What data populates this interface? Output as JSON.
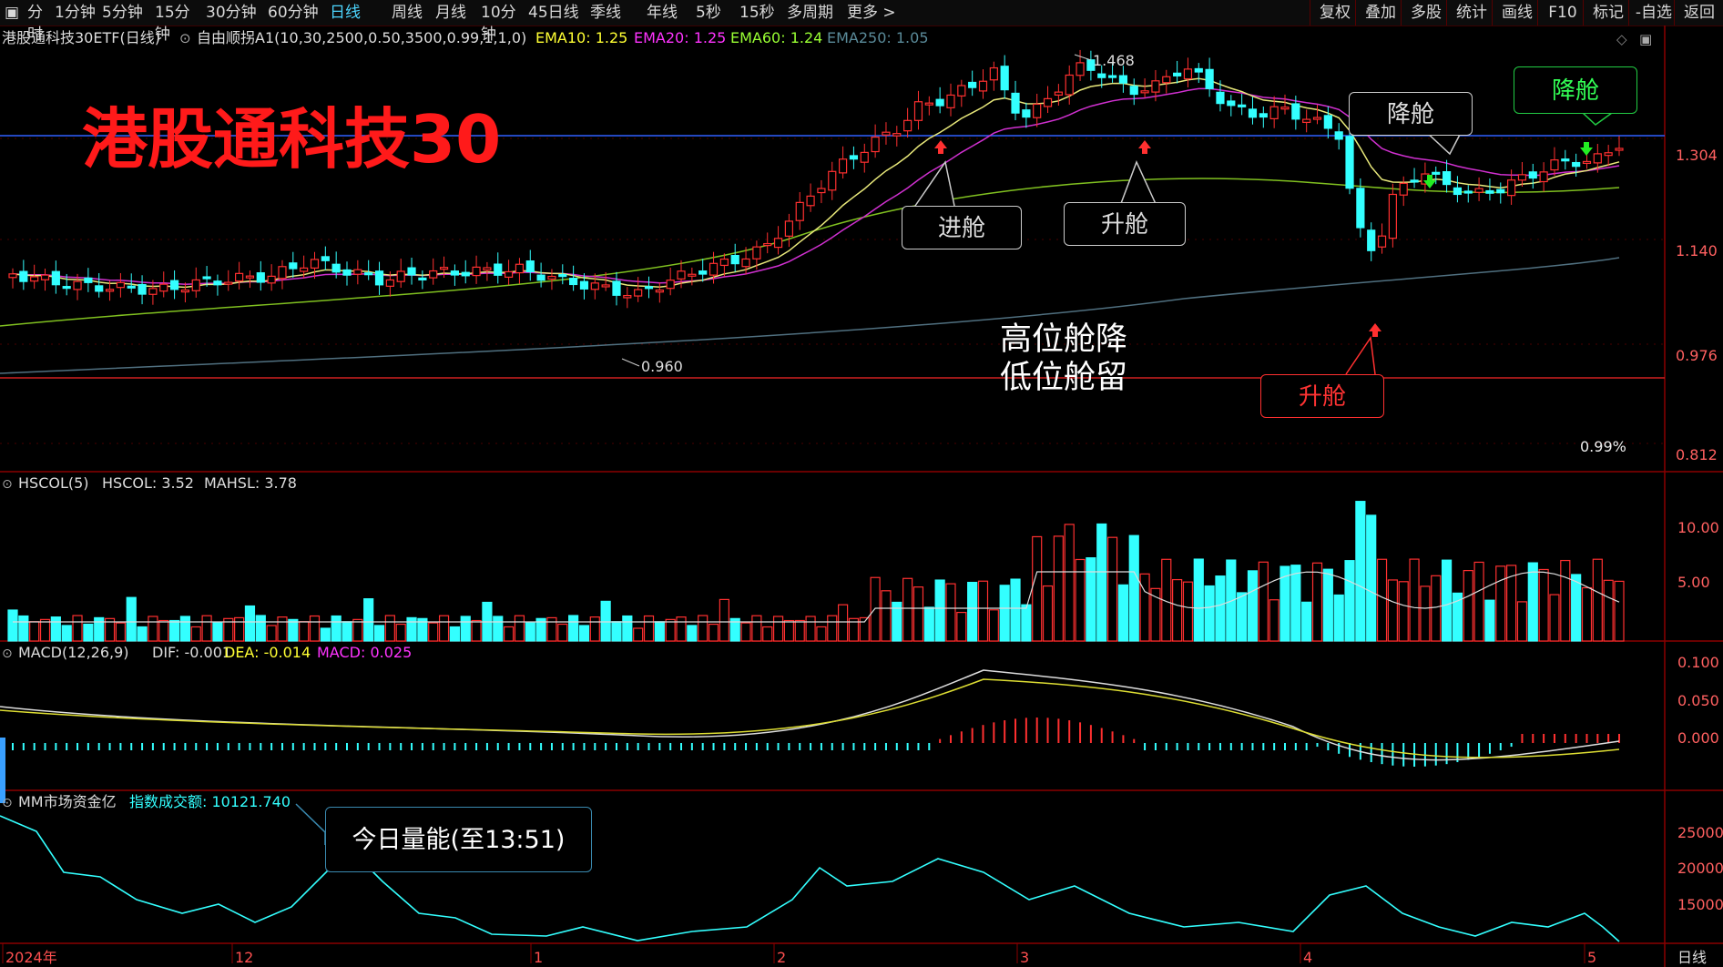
{
  "toolbar": {
    "left": [
      "分时",
      "1分钟",
      "5分钟",
      "15分钟",
      "30分钟",
      "60分钟",
      "日线",
      "周线",
      "月线",
      "10分钟",
      "45日线",
      "季线",
      "年线",
      "5秒",
      "15秒",
      "多周期",
      "更多 >"
    ],
    "active_index": 6,
    "right": [
      "复权",
      "叠加",
      "多股",
      "统计",
      "画线",
      "F10",
      "标记",
      "-自选",
      "返回"
    ]
  },
  "main_panel": {
    "symbol": "港股通科技30ETF(日线)",
    "indicator_name": "自由顺拐A1(10,30,2500,0.50,3500,0.99,1,1,0)",
    "ema": [
      {
        "label": "EMA10: 1.25",
        "color": "#ffff33"
      },
      {
        "label": "EMA20: 1.25",
        "color": "#ff33ff"
      },
      {
        "label": "EMA60: 1.24",
        "color": "#99ff33"
      },
      {
        "label": "EMA250: 1.05",
        "color": "#5a8a99"
      }
    ],
    "axis_labels": [
      "1.304",
      "1.140",
      "0.976",
      "0.812"
    ],
    "high_label": "1.468",
    "low_label": "0.960",
    "pct_label": "0.99%",
    "big_title": "港股通科技30",
    "center_note": [
      "高位舱降",
      "低位舱留"
    ],
    "annotations": {
      "jin_cang": "进舱",
      "sheng_cang_1": "升舱",
      "jiang_cang_1": "降舱",
      "jiang_cang_2": "降舱",
      "sheng_cang_2": "升舱"
    }
  },
  "vol_panel": {
    "title": "HSCOL(5)",
    "v1": "HSCOL: 3.52",
    "v2": "MAHSL: 3.78",
    "axis_labels": [
      "10.00",
      "5.00"
    ]
  },
  "macd_panel": {
    "title": "MACD(12,26,9)",
    "dif": "DIF: -0.001",
    "dea": "DEA: -0.014",
    "macd": "MACD: 0.025",
    "axis_labels": [
      "0.100",
      "0.050",
      "0.000"
    ]
  },
  "money_panel": {
    "title": "MM市场资金亿",
    "label": "指数成交额: 10121.740",
    "callout": "今日量能(至13:51)",
    "axis_labels": [
      "25000",
      "20000",
      "15000"
    ]
  },
  "date_axis": {
    "labels": [
      "2024年",
      "12",
      "1",
      "2",
      "3",
      "4",
      "5"
    ],
    "period": "日线"
  },
  "colors": {
    "up": "#ff3030",
    "down": "#33ffff",
    "ema10": "#e8e87a",
    "ema20": "#d030d0",
    "ema60": "#80c020",
    "ema250": "#507080"
  }
}
